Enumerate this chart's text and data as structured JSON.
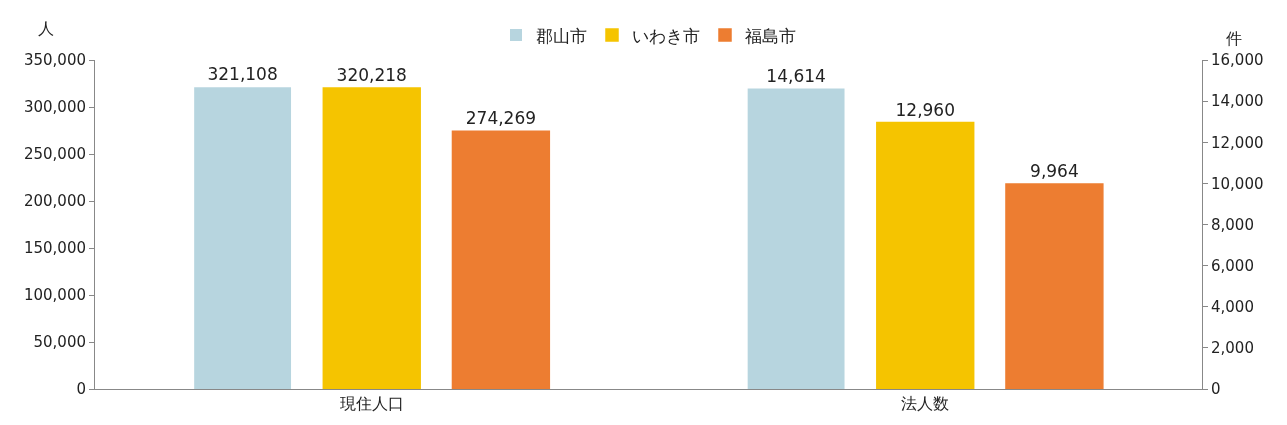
{
  "chart_data": {
    "type": "bar",
    "categories": [
      "現住人口",
      "法人数"
    ],
    "ylabel": "人",
    "y2label": "件",
    "series": [
      {
        "name": "郡山市",
        "color": "#b7d5df",
        "values": [
          321108,
          null
        ],
        "value_labels": [
          "321,108",
          null
        ]
      },
      {
        "name": "いわき市",
        "color": "#f5c400",
        "values": [
          320218,
          null
        ],
        "value_labels": [
          "320,218",
          null
        ]
      },
      {
        "name": "福島市",
        "color": "#ed7d31",
        "values": [
          274269,
          null
        ],
        "value_labels": [
          "274,269",
          null
        ]
      },
      {
        "color": "#b7d5df",
        "values": [
          null,
          14614
        ],
        "axis": "y2",
        "value_labels": [
          null,
          "14,614"
        ]
      },
      {
        "color": "#f5c400",
        "values": [
          null,
          12960
        ],
        "axis": "y2",
        "value_labels": [
          null,
          "12,960"
        ]
      },
      {
        "color": "#ed7d31",
        "values": [
          null,
          9964
        ],
        "axis": "y2",
        "value_labels": [
          null,
          "9,964"
        ]
      }
    ],
    "ylim": [
      0,
      350000
    ],
    "yticks": [
      {
        "value": 0,
        "label": "0"
      },
      {
        "value": 50000,
        "label": "50,000"
      },
      {
        "value": 100000,
        "label": "100,000"
      },
      {
        "value": 150000,
        "label": "150,000"
      },
      {
        "value": 200000,
        "label": "200,000"
      },
      {
        "value": 250000,
        "label": "250,000"
      },
      {
        "value": 300000,
        "label": "300,000"
      },
      {
        "value": 350000,
        "label": "350,000"
      }
    ],
    "y2lim": [
      0,
      16000
    ],
    "y2ticks": [
      {
        "value": 0,
        "label": "0"
      },
      {
        "value": 2000,
        "label": "2,000"
      },
      {
        "value": 4000,
        "label": "4,000"
      },
      {
        "value": 6000,
        "label": "6,000"
      },
      {
        "value": 8000,
        "label": "8,000"
      },
      {
        "value": 10000,
        "label": "10,000"
      },
      {
        "value": 12000,
        "label": "12,000"
      },
      {
        "value": 14000,
        "label": "14,000"
      },
      {
        "value": 16000,
        "label": "16,000"
      }
    ],
    "legend": "top"
  }
}
